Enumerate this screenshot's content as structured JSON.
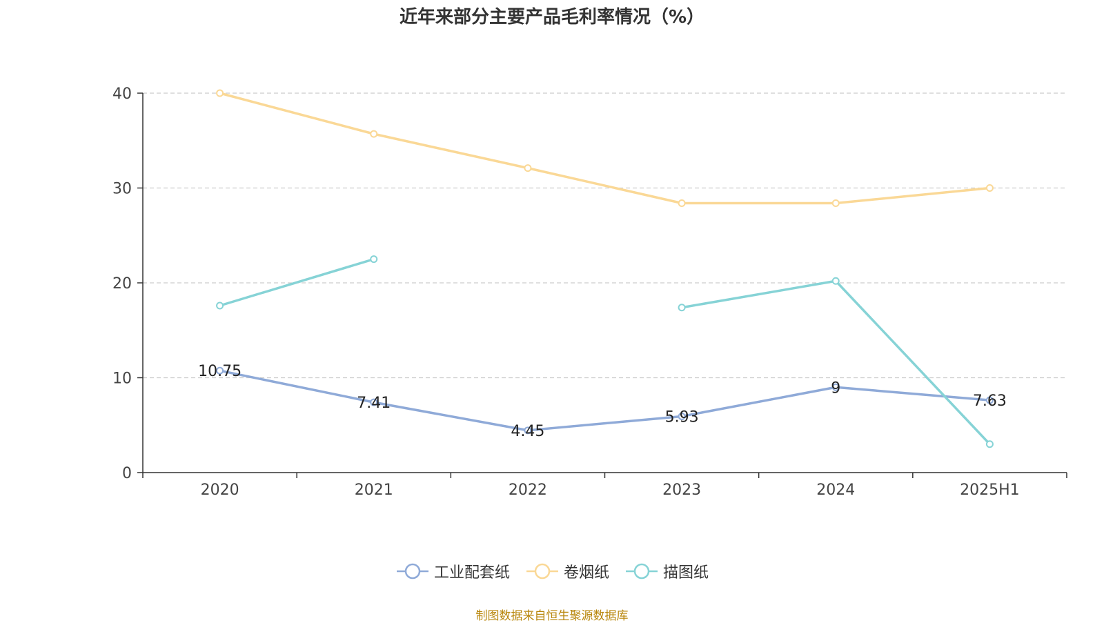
{
  "chart_data": {
    "type": "line",
    "title": "近年来部分主要产品毛利率情况（%）",
    "categories": [
      "2020",
      "2021",
      "2022",
      "2023",
      "2024",
      "2025H1"
    ],
    "ylim": [
      0,
      40
    ],
    "yticks": [
      "0",
      "10",
      "20",
      "30",
      "40"
    ],
    "grid": true,
    "legend_position": "bottom",
    "series": [
      {
        "name": "工业配套纸",
        "color": "#8FAAD8",
        "values": [
          10.75,
          7.41,
          4.45,
          5.93,
          9,
          7.63
        ],
        "data_labels": [
          "10.75",
          "7.41",
          "4.45",
          "5.93",
          "9",
          "7.63"
        ]
      },
      {
        "name": "卷烟纸",
        "color": "#FAD896",
        "values": [
          40,
          35.7,
          32.1,
          28.4,
          28.4,
          30
        ],
        "data_labels": null
      },
      {
        "name": "描图纸",
        "color": "#86D3D6",
        "values": [
          17.6,
          22.5,
          null,
          17.4,
          20.2,
          3
        ],
        "data_labels": null
      }
    ]
  },
  "source_note": "制图数据来自恒生聚源数据库"
}
